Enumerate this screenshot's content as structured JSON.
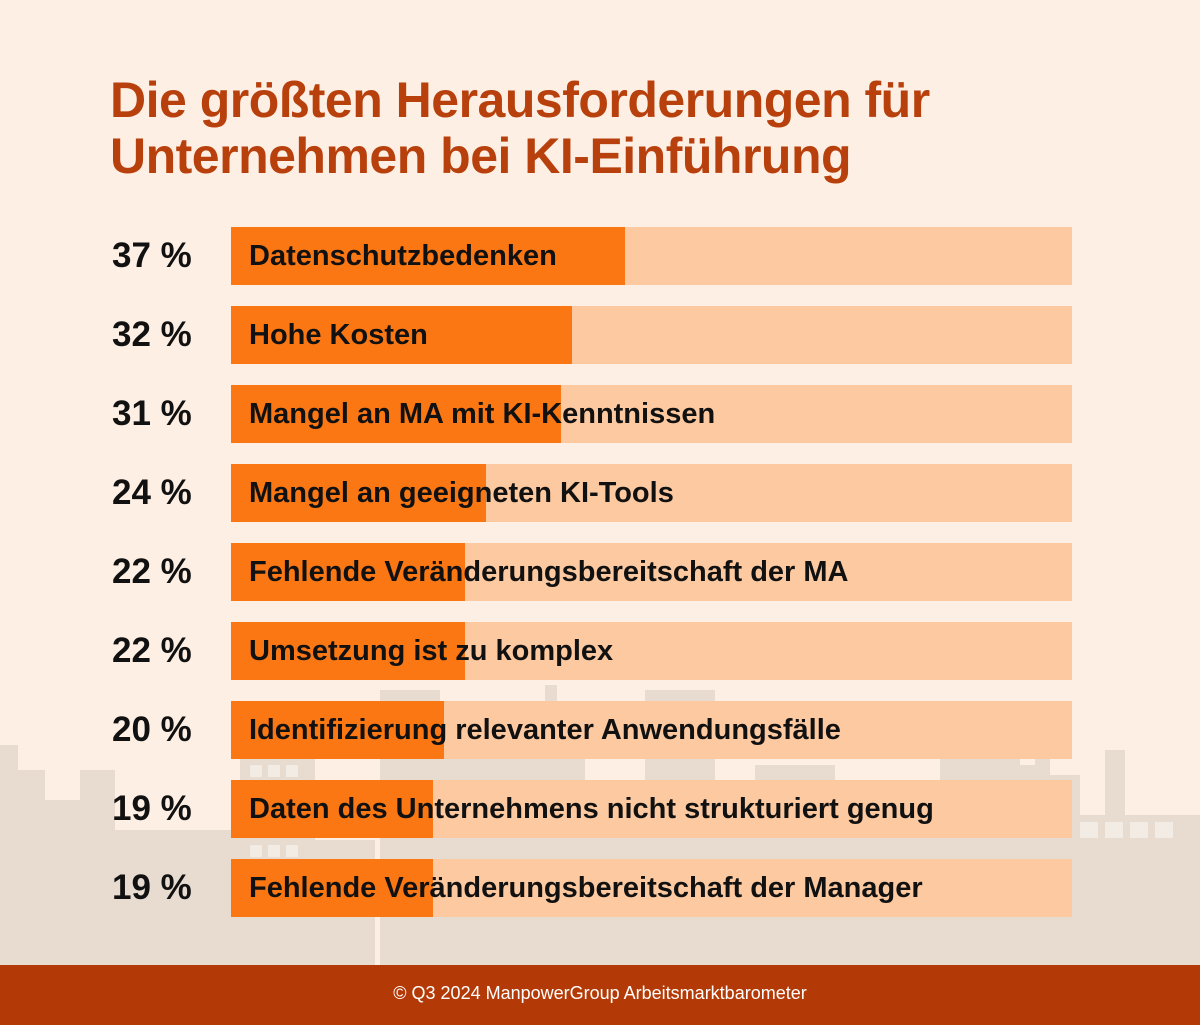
{
  "chart_data": {
    "type": "bar",
    "orientation": "horizontal",
    "title_lines": [
      "Die größten Herausforderungen für",
      "Unternehmen bei KI-Einführung"
    ],
    "categories": [
      "Datenschutzbedenken",
      "Hohe Kosten",
      "Mangel an MA mit KI-Kenntnissen",
      "Mangel an geeigneten KI-Tools",
      "Fehlende Veränderungsbereitschaft der MA",
      "Umsetzung ist zu komplex",
      "Identifizierung relevanter Anwendungsfälle",
      "Daten des Unternehmens nicht strukturiert genug",
      "Fehlende Veränderungsbereitschaft der Manager"
    ],
    "values": [
      37,
      32,
      31,
      24,
      22,
      22,
      20,
      19,
      19
    ],
    "value_labels": [
      "37 %",
      "32 %",
      "31 %",
      "24 %",
      "22 %",
      "22 %",
      "20 %",
      "19 %",
      "19 %"
    ],
    "unit": "%",
    "xlim": [
      0,
      79
    ],
    "grid": false,
    "legend": "none",
    "colors": {
      "bar": "#FA7714",
      "track": "#FDC9A0",
      "title": "#B8400C",
      "background": "#FDEFE3"
    }
  },
  "footer": {
    "source": "© Q3 2024 ManpowerGroup Arbeitsmarktbarometer",
    "background": "#B33A06"
  }
}
